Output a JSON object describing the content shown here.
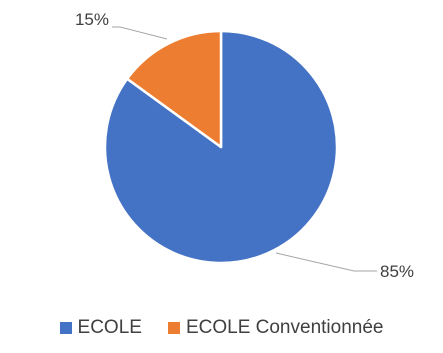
{
  "chart_data": {
    "type": "pie",
    "categories": [
      "ECOLE",
      "ECOLE Conventionnée"
    ],
    "values": [
      85,
      15
    ],
    "labels": [
      "85%",
      "15%"
    ],
    "colors": [
      "#4472c4",
      "#ed7d31"
    ],
    "legend_position": "bottom",
    "start_angle": "top",
    "direction": "clockwise"
  }
}
